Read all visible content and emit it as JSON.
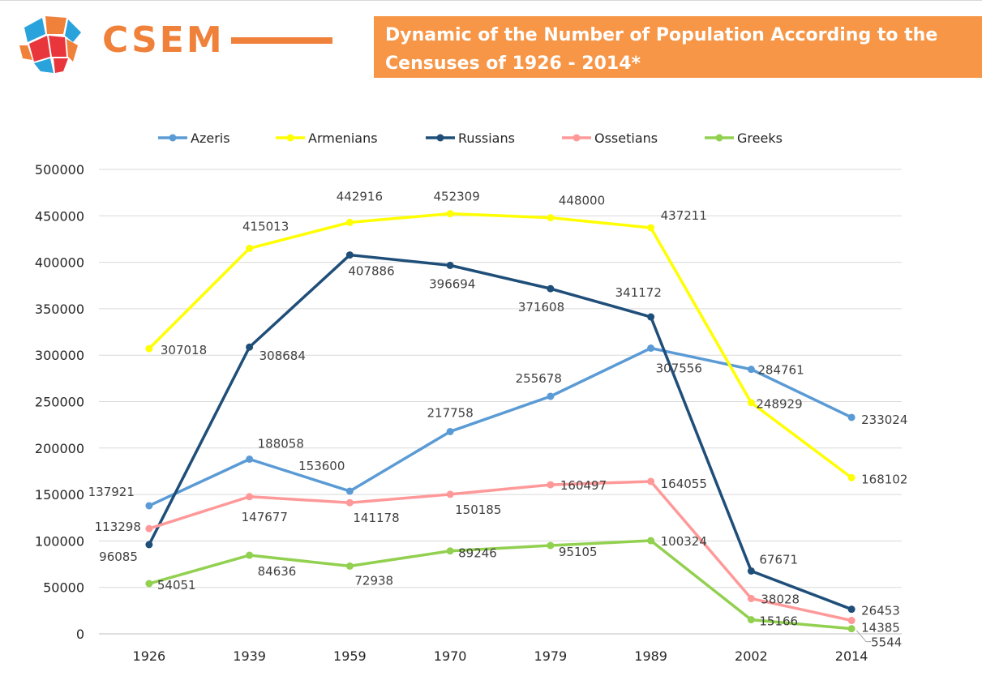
{
  "header": {
    "brand": "CSEM",
    "title_line1": "Dynamic of the Number of Population According to the",
    "title_line2": "Censuses of 1926 - 2014*"
  },
  "colors": {
    "accent": "#f0813a",
    "title_bg": "#f79646"
  },
  "chart_data": {
    "type": "line",
    "categories": [
      "1926",
      "1939",
      "1959",
      "1970",
      "1979",
      "1989",
      "2002",
      "2014"
    ],
    "ylim": [
      0,
      500000
    ],
    "yticks": [
      0,
      50000,
      100000,
      150000,
      200000,
      250000,
      300000,
      350000,
      400000,
      450000,
      500000
    ],
    "ytick_labels": [
      "0",
      "50000",
      "100000",
      "150000",
      "200000",
      "250000",
      "300000",
      "350000",
      "400000",
      "450000",
      "500000"
    ],
    "grid": true,
    "legend": "top",
    "series": [
      {
        "name": "Azeris",
        "color": "#5b9bd5",
        "values": [
          137921,
          188058,
          153600,
          217758,
          255678,
          307556,
          284761,
          233024
        ]
      },
      {
        "name": "Armenians",
        "color": "#ffff00",
        "values": [
          307018,
          415013,
          442916,
          452309,
          448000,
          437211,
          248929,
          168102
        ]
      },
      {
        "name": "Russians",
        "color": "#1f4e79",
        "values": [
          96085,
          308684,
          407886,
          396694,
          371608,
          341172,
          67671,
          26453
        ]
      },
      {
        "name": "Ossetians",
        "color": "#ff9999",
        "values": [
          113298,
          147677,
          141178,
          150185,
          160497,
          164055,
          38028,
          14385
        ]
      },
      {
        "name": "Greeks",
        "color": "#92d050",
        "values": [
          54051,
          84636,
          72938,
          89246,
          95105,
          100324,
          15166,
          5544
        ]
      }
    ]
  }
}
